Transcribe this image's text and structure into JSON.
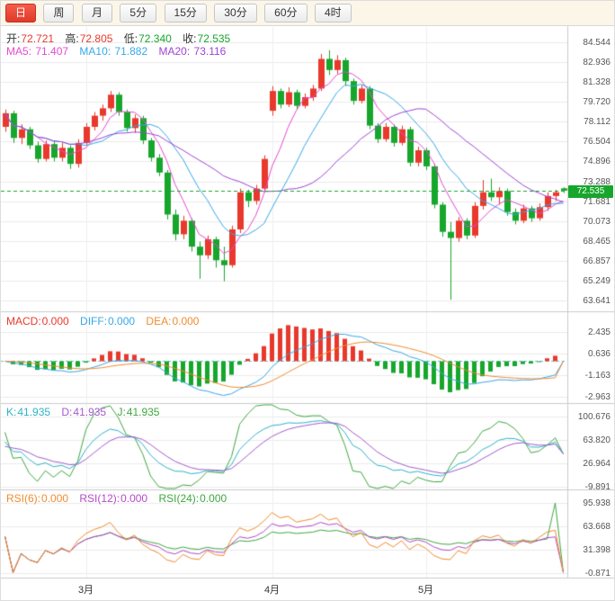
{
  "toolbar": {
    "buttons": [
      "日",
      "周",
      "月",
      "5分",
      "15分",
      "30分",
      "60分",
      "4时"
    ],
    "active_index": 0
  },
  "main": {
    "ohlc": {
      "open_label": "开:",
      "open": "72.721",
      "high_label": "高:",
      "high": "72.805",
      "low_label": "低:",
      "low": "72.340",
      "close_label": "收:",
      "close": "72.535"
    },
    "ma": {
      "ma5_label": "MA5:",
      "ma5": "71.407",
      "ma10_label": "MA10:",
      "ma10": "71.882",
      "ma20_label": "MA20:",
      "ma20": "73.116"
    },
    "price_badge": "72.535",
    "y_labels": [
      "84.544",
      "82.936",
      "81.328",
      "79.720",
      "78.112",
      "76.504",
      "74.896",
      "73.288",
      "71.681",
      "70.073",
      "68.465",
      "66.857",
      "65.249",
      "63.641"
    ]
  },
  "macd": {
    "macd_label": "MACD:",
    "macd": "0.000",
    "diff_label": "DIFF:",
    "diff": "0.000",
    "dea_label": "DEA:",
    "dea": "0.000",
    "y_labels": [
      "2.435",
      "0.636",
      "-1.163",
      "-2.963"
    ]
  },
  "kdj": {
    "k_label": "K:",
    "k": "41.935",
    "d_label": "D:",
    "d": "41.935",
    "j_label": "J:",
    "j": "41.935",
    "y_labels": [
      "100.676",
      "63.820",
      "26.964",
      "-9.891"
    ]
  },
  "rsi": {
    "rsi6_label": "RSI(6):",
    "rsi6": "0.000",
    "rsi12_label": "RSI(12):",
    "rsi12": "0.000",
    "rsi24_label": "RSI(24):",
    "rsi24": "0.000",
    "y_labels": [
      "95.938",
      "63.668",
      "31.398",
      "-0.871"
    ]
  },
  "colors": {
    "up": "#e8392c",
    "down": "#17a62c",
    "ma5": "#e64ad0",
    "ma10": "#38a8e8",
    "ma20": "#a044d4",
    "macd_label": "#e8392c",
    "diff": "#38a8e8",
    "dea": "#f08c2e",
    "k": "#2fb3c8",
    "d": "#a45bd0",
    "j": "#3fa83f",
    "rsi6": "#f08c2e",
    "rsi12": "#b44ac8",
    "rsi24": "#3fa83f",
    "price_line": "#17a62c",
    "zero_line": "#5fc6d8",
    "grid": "#ececec",
    "panel_border": "#cccccc",
    "axis_text": "#555555"
  },
  "chart_data": {
    "type": "candlestick",
    "title": "",
    "y_range": [
      63.641,
      84.544
    ],
    "current_price": 72.535,
    "month_ticks": [
      {
        "index": 10,
        "label": "3月"
      },
      {
        "index": 33,
        "label": "4月"
      },
      {
        "index": 52,
        "label": "5月"
      }
    ],
    "indicators": {
      "ma_periods": [
        5,
        10,
        20
      ],
      "macd_params": [
        12,
        26,
        9
      ],
      "kdj_params": [
        9,
        3,
        3
      ],
      "rsi_periods": [
        6,
        12,
        24
      ]
    },
    "sub_panels": [
      {
        "name": "MACD",
        "y_range": [
          -2.963,
          2.435
        ]
      },
      {
        "name": "KDJ",
        "y_range": [
          -9.891,
          100.676
        ]
      },
      {
        "name": "RSI",
        "y_range": [
          -0.871,
          95.938
        ]
      }
    ],
    "candles": [
      [
        77.7,
        79.1,
        77.3,
        78.8
      ],
      [
        78.8,
        79.0,
        76.4,
        76.8
      ],
      [
        76.8,
        77.9,
        76.3,
        77.5
      ],
      [
        77.5,
        77.7,
        75.9,
        76.2
      ],
      [
        76.2,
        76.5,
        74.8,
        75.1
      ],
      [
        75.1,
        76.6,
        74.9,
        76.3
      ],
      [
        76.3,
        76.6,
        74.9,
        75.2
      ],
      [
        75.2,
        76.4,
        74.9,
        76.0
      ],
      [
        76.0,
        76.2,
        74.3,
        74.7
      ],
      [
        74.7,
        76.7,
        74.4,
        76.4
      ],
      [
        76.4,
        78.0,
        76.2,
        77.7
      ],
      [
        77.7,
        78.9,
        77.4,
        78.6
      ],
      [
        78.6,
        79.5,
        78.2,
        79.2
      ],
      [
        79.2,
        80.6,
        78.9,
        80.3
      ],
      [
        80.3,
        80.5,
        78.6,
        78.9
      ],
      [
        78.9,
        79.1,
        77.3,
        77.6
      ],
      [
        77.6,
        78.7,
        77.2,
        78.4
      ],
      [
        78.4,
        78.6,
        76.3,
        76.6
      ],
      [
        76.6,
        76.8,
        74.9,
        75.2
      ],
      [
        75.2,
        75.5,
        73.7,
        74.0
      ],
      [
        74.0,
        74.2,
        70.2,
        70.6
      ],
      [
        70.6,
        71.0,
        68.5,
        69.0
      ],
      [
        69.0,
        70.5,
        68.6,
        70.1
      ],
      [
        70.1,
        70.3,
        67.6,
        68.0
      ],
      [
        68.0,
        68.4,
        65.4,
        67.3
      ],
      [
        67.3,
        68.9,
        67.0,
        68.6
      ],
      [
        68.6,
        68.8,
        66.3,
        66.9
      ],
      [
        66.9,
        68.0,
        65.2,
        66.5
      ],
      [
        66.5,
        69.7,
        66.3,
        69.4
      ],
      [
        69.4,
        72.7,
        69.1,
        72.4
      ],
      [
        72.4,
        72.6,
        71.2,
        71.7
      ],
      [
        71.7,
        73.0,
        71.4,
        72.7
      ],
      [
        72.7,
        75.4,
        72.5,
        75.1
      ],
      [
        79.0,
        81.0,
        78.6,
        80.6
      ],
      [
        80.6,
        80.8,
        79.2,
        79.5
      ],
      [
        79.5,
        80.9,
        79.3,
        80.5
      ],
      [
        80.5,
        80.7,
        79.1,
        79.4
      ],
      [
        79.4,
        80.4,
        79.2,
        80.1
      ],
      [
        80.1,
        81.1,
        79.8,
        80.8
      ],
      [
        80.8,
        83.6,
        80.6,
        83.2
      ],
      [
        83.2,
        83.9,
        81.9,
        82.3
      ],
      [
        82.3,
        83.5,
        82.0,
        83.1
      ],
      [
        83.1,
        83.3,
        81.0,
        81.4
      ],
      [
        81.4,
        81.6,
        79.5,
        79.8
      ],
      [
        79.8,
        81.1,
        79.6,
        80.8
      ],
      [
        80.8,
        81.0,
        77.5,
        77.8
      ],
      [
        77.8,
        78.0,
        76.4,
        76.7
      ],
      [
        76.7,
        78.0,
        76.5,
        77.7
      ],
      [
        77.7,
        77.9,
        76.1,
        76.4
      ],
      [
        76.4,
        77.8,
        76.2,
        77.5
      ],
      [
        77.5,
        77.7,
        74.5,
        74.8
      ],
      [
        74.8,
        76.1,
        74.5,
        75.8
      ],
      [
        75.8,
        76.0,
        74.2,
        74.5
      ],
      [
        74.5,
        74.7,
        71.1,
        71.4
      ],
      [
        71.4,
        71.6,
        68.8,
        69.2
      ],
      [
        69.2,
        70.0,
        63.7,
        68.7
      ],
      [
        68.7,
        70.4,
        68.4,
        70.1
      ],
      [
        70.1,
        70.3,
        68.6,
        68.9
      ],
      [
        68.9,
        71.6,
        68.7,
        71.3
      ],
      [
        71.3,
        73.4,
        71.0,
        72.4
      ],
      [
        72.4,
        73.5,
        71.7,
        72.0
      ],
      [
        72.0,
        72.8,
        71.4,
        72.5
      ],
      [
        72.5,
        72.7,
        70.5,
        70.8
      ],
      [
        70.8,
        71.1,
        69.8,
        70.1
      ],
      [
        70.1,
        71.4,
        69.9,
        71.1
      ],
      [
        71.1,
        71.3,
        70.0,
        70.3
      ],
      [
        70.3,
        71.5,
        70.1,
        71.2
      ],
      [
        71.2,
        72.4,
        70.9,
        72.1
      ],
      [
        72.1,
        72.6,
        71.7,
        72.4
      ],
      [
        72.721,
        72.805,
        72.34,
        72.535
      ]
    ]
  },
  "x_axis": {
    "labels": [
      "3月",
      "4月",
      "5月"
    ]
  }
}
